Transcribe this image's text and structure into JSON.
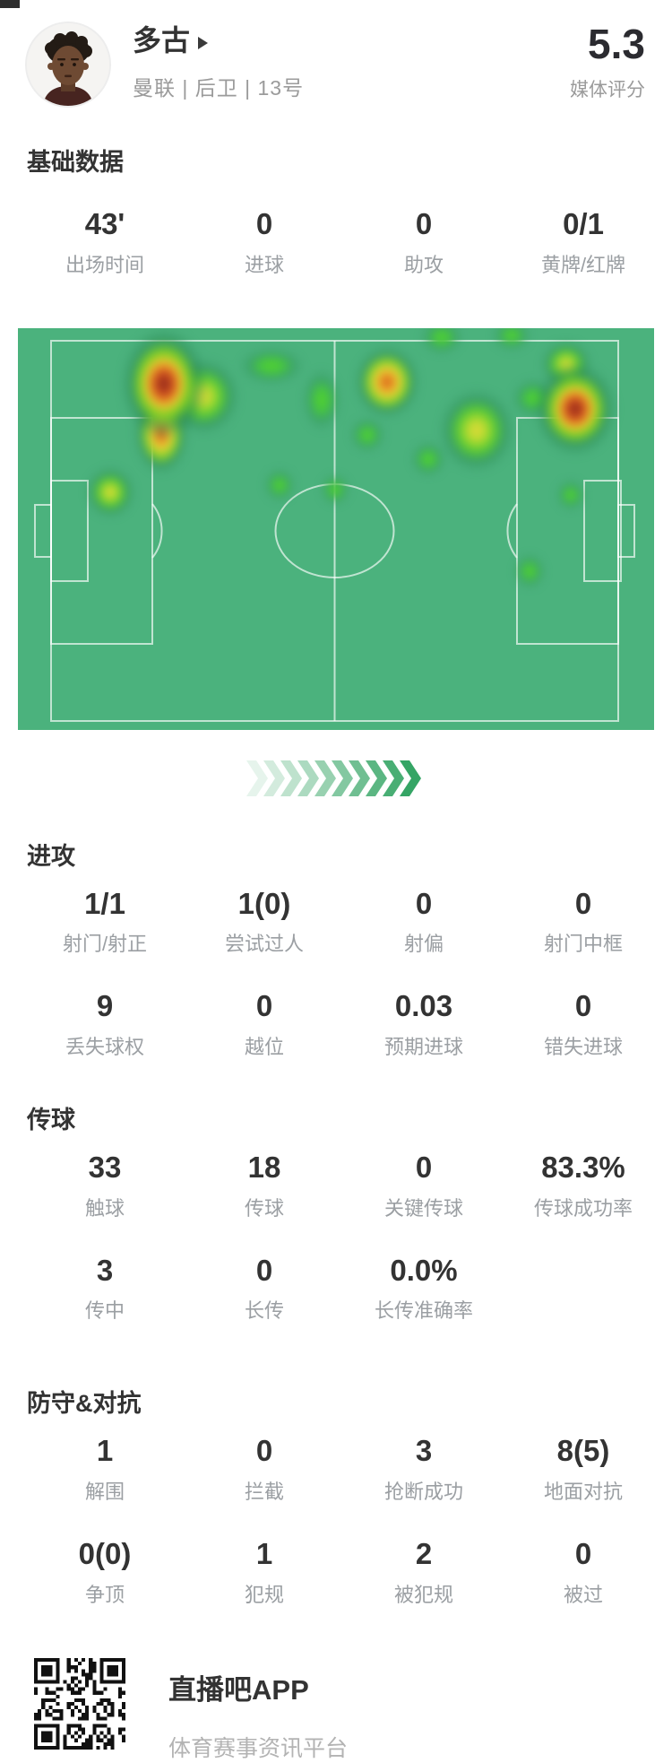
{
  "header": {
    "name": "多古",
    "team": "曼联 | 后卫 | 13号",
    "rating": "5.3",
    "rating_label": "媒体评分"
  },
  "stats": {
    "basic": {
      "title": "基础数据",
      "rows": [
        [
          {
            "v": "43'",
            "l": "出场时间"
          },
          {
            "v": "0",
            "l": "进球"
          },
          {
            "v": "0",
            "l": "助攻"
          },
          {
            "v": "0/1",
            "l": "黄牌/红牌"
          }
        ]
      ]
    },
    "attack": {
      "title": "进攻",
      "rows": [
        [
          {
            "v": "1/1",
            "l": "射门/射正"
          },
          {
            "v": "1(0)",
            "l": "尝试过人"
          },
          {
            "v": "0",
            "l": "射偏"
          },
          {
            "v": "0",
            "l": "射门中框"
          }
        ],
        [
          {
            "v": "9",
            "l": "丢失球权"
          },
          {
            "v": "0",
            "l": "越位"
          },
          {
            "v": "0.03",
            "l": "预期进球"
          },
          {
            "v": "0",
            "l": "错失进球"
          }
        ]
      ]
    },
    "passing": {
      "title": "传球",
      "rows": [
        [
          {
            "v": "33",
            "l": "触球"
          },
          {
            "v": "18",
            "l": "传球"
          },
          {
            "v": "0",
            "l": "关键传球"
          },
          {
            "v": "83.3%",
            "l": "传球成功率"
          }
        ],
        [
          {
            "v": "3",
            "l": "传中"
          },
          {
            "v": "0",
            "l": "长传"
          },
          {
            "v": "0.0%",
            "l": "长传准确率"
          }
        ]
      ]
    },
    "defense": {
      "title": "防守&对抗",
      "rows": [
        [
          {
            "v": "1",
            "l": "解围"
          },
          {
            "v": "0",
            "l": "拦截"
          },
          {
            "v": "3",
            "l": "抢断成功"
          },
          {
            "v": "8(5)",
            "l": "地面对抗"
          }
        ],
        [
          {
            "v": "0(0)",
            "l": "争顶"
          },
          {
            "v": "1",
            "l": "犯规"
          },
          {
            "v": "2",
            "l": "被犯规"
          },
          {
            "v": "0",
            "l": "被过"
          }
        ]
      ]
    }
  },
  "footer": {
    "app_name": "直播吧APP",
    "tagline": "体育赛事资讯平台",
    "qr_icon": "qr-code"
  },
  "colors": {
    "value_text": "#333333",
    "label_text": "#9b9fa3",
    "chevron": "#35a565",
    "pitch_green": "#4bb27d",
    "pitch_line": "rgba(255,255,255,0.65)",
    "heat_scale": [
      "#47c83e",
      "#b4dc2f",
      "#e8d83c",
      "#e06d1f",
      "#b8391f",
      "#7c2b16"
    ]
  },
  "heatmap": {
    "base": "#4bb27d",
    "palettes": {
      "red": "#7c2b16 0%, #b8391f 14%, #e06d1f 27%, #ecc833 40%, #7ed321 56%, rgba(38,134,82,0.55) 76%, rgba(56,150,95,0) 100%",
      "red2": "#cc4a22 0%, #e8901f 18%, #edd23a 36%, #8bd626 56%, rgba(38,134,82,0.5) 78%, rgba(56,150,95,0) 100%",
      "yellow": "#e8d83c 0%, #b4dc2f 25%, #57ca35 50%, rgba(38,134,82,0.45) 75%, rgba(56,150,95,0) 100%",
      "green": "#55d22e 0%, #47c83e 35%, rgba(40,140,84,0.4) 70%, rgba(56,150,95,0) 100%"
    },
    "blobs": [
      [
        163,
        62,
        48,
        62,
        "red"
      ],
      [
        160,
        118,
        30,
        44,
        "red2"
      ],
      [
        622,
        90,
        46,
        52,
        "red"
      ],
      [
        412,
        60,
        36,
        40,
        "red2"
      ],
      [
        207,
        76,
        40,
        42,
        "yellow"
      ],
      [
        512,
        114,
        42,
        46,
        "yellow"
      ],
      [
        612,
        40,
        28,
        26,
        "yellow"
      ],
      [
        103,
        183,
        27,
        28,
        "yellow"
      ],
      [
        283,
        42,
        36,
        20,
        "green"
      ],
      [
        339,
        80,
        21,
        34,
        "green"
      ],
      [
        390,
        119,
        19,
        19,
        "green"
      ],
      [
        458,
        146,
        19,
        19,
        "green"
      ],
      [
        575,
        78,
        23,
        21,
        "green"
      ],
      [
        473,
        10,
        23,
        19,
        "green"
      ],
      [
        551,
        8,
        21,
        17,
        "green"
      ],
      [
        292,
        175,
        17,
        18,
        "green"
      ],
      [
        354,
        180,
        16,
        17,
        "green"
      ],
      [
        617,
        186,
        16,
        17,
        "green"
      ],
      [
        571,
        271,
        17,
        19,
        "green"
      ]
    ]
  }
}
